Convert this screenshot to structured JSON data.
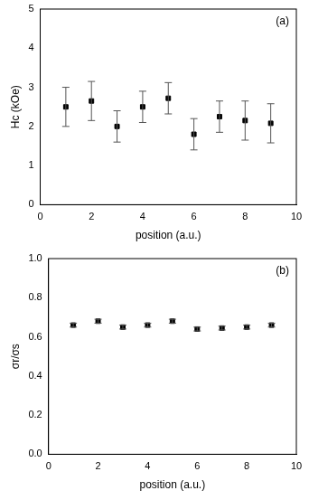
{
  "chart_data": [
    {
      "type": "scatter",
      "annotation": "(a)",
      "x_label": "position (a.u.)",
      "y_label": "Hc (kOe)",
      "x": [
        1,
        2,
        3,
        4,
        5,
        6,
        7,
        8,
        9
      ],
      "values": [
        2.5,
        2.65,
        2.0,
        2.5,
        2.72,
        1.8,
        2.25,
        2.15,
        2.08
      ],
      "errors": [
        0.5,
        0.5,
        0.4,
        0.4,
        0.4,
        0.4,
        0.4,
        0.5,
        0.5
      ],
      "color": "#000000",
      "marker": "square",
      "grid": false,
      "xlim": [
        0,
        10
      ],
      "xticks": [
        0,
        2,
        4,
        6,
        8,
        10
      ],
      "ylim": [
        0,
        5
      ],
      "yticks": [
        0,
        1,
        2,
        3,
        4,
        5
      ]
    },
    {
      "type": "scatter",
      "annotation": "(b)",
      "x_label": "position (a.u.)",
      "y_label": "σr/σs",
      "x": [
        1,
        2,
        3,
        4,
        5,
        6,
        7,
        8,
        9
      ],
      "values": [
        0.66,
        0.68,
        0.65,
        0.66,
        0.68,
        0.64,
        0.645,
        0.65,
        0.66
      ],
      "errors": [
        0.01,
        0.01,
        0.01,
        0.01,
        0.01,
        0.01,
        0.01,
        0.01,
        0.01
      ],
      "color": "#000000",
      "marker": "square",
      "grid": false,
      "xlim": [
        0,
        10
      ],
      "xticks": [
        0,
        2,
        4,
        6,
        8,
        10
      ],
      "ylim": [
        0,
        1.0
      ],
      "yticks": [
        {
          "value": 0,
          "label": "0.0"
        },
        0.2,
        0.4,
        0.6,
        0.8,
        {
          "value": 1.0,
          "label": "1.0"
        }
      ]
    }
  ]
}
